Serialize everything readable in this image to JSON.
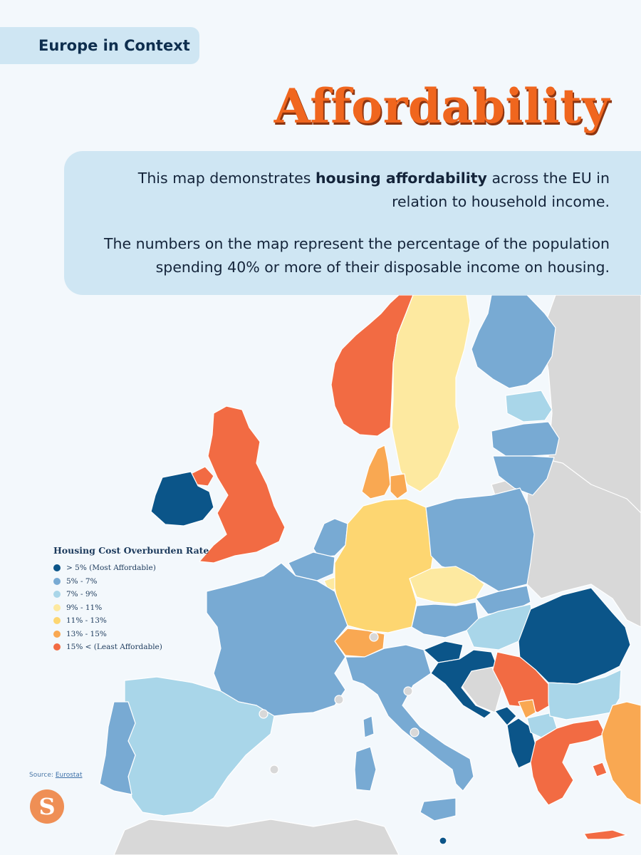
{
  "header": {
    "tag": "Europe in Context",
    "title": "Affordability"
  },
  "description": {
    "p1_prefix": "This map demonstrates ",
    "p1_bold": "housing affordability",
    "p1_suffix": " across the EU in relation to household income.",
    "p2": "The numbers on the map represent the percentage of the population spending 40% or more of their disposable income on housing."
  },
  "legend": {
    "title": "Housing Cost Overburden Rate",
    "items": [
      {
        "label": "> 5% (Most Affordable)",
        "color": "#0b5589"
      },
      {
        "label": "5% - 7%",
        "color": "#78aad3"
      },
      {
        "label": "7% - 9%",
        "color": "#a9d6e9"
      },
      {
        "label": "9% - 11%",
        "color": "#fde9a0"
      },
      {
        "label": "11% - 13%",
        "color": "#fdd671"
      },
      {
        "label": "13% - 15%",
        "color": "#f9a852"
      },
      {
        "label": "15% < (Least Affordable)",
        "color": "#f26b43"
      }
    ]
  },
  "map": {
    "colors": {
      "sea": "#f3f8fc",
      "non_eu": "#d8d8d8",
      "border": "#ffffff"
    },
    "categories": {
      "Ireland": "> 5% (Most Affordable)",
      "Romania": "> 5% (Most Affordable)",
      "Croatia": "> 5% (Most Affordable)",
      "Slovenia": "> 5% (Most Affordable)",
      "Montenegro": "> 5% (Most Affordable)",
      "Albania": "> 5% (Most Affordable)",
      "Finland": "5% - 7%",
      "France": "5% - 7%",
      "Italy": "5% - 7%",
      "Poland": "5% - 7%",
      "Portugal": "5% - 7%",
      "Lithuania": "5% - 7%",
      "Latvia": "5% - 7%",
      "Austria": "5% - 7%",
      "Belgium": "5% - 7%",
      "Netherlands": "5% - 7%",
      "Slovakia": "5% - 7%",
      "Spain": "7% - 9%",
      "Hungary": "7% - 9%",
      "Bulgaria": "7% - 9%",
      "Estonia": "7% - 9%",
      "North Macedonia": "7% - 9%",
      "Sweden": "9% - 11%",
      "Czechia": "9% - 11%",
      "Luxembourg": "9% - 11%",
      "Germany": "11% - 13%",
      "Denmark": "13% - 15%",
      "Switzerland": "13% - 15%",
      "Turkey": "13% - 15%",
      "Kosovo": "13% - 15%",
      "Norway": "15% < (Least Affordable)",
      "United Kingdom": "15% < (Least Affordable)",
      "Northern Ireland": "15% < (Least Affordable)",
      "Greece": "15% < (Least Affordable)",
      "Serbia": "15% < (Least Affordable)"
    }
  },
  "source": {
    "label": "Source: ",
    "link": "Eurostat"
  },
  "logo": {
    "letter": "S",
    "color": "#ef8f55"
  }
}
